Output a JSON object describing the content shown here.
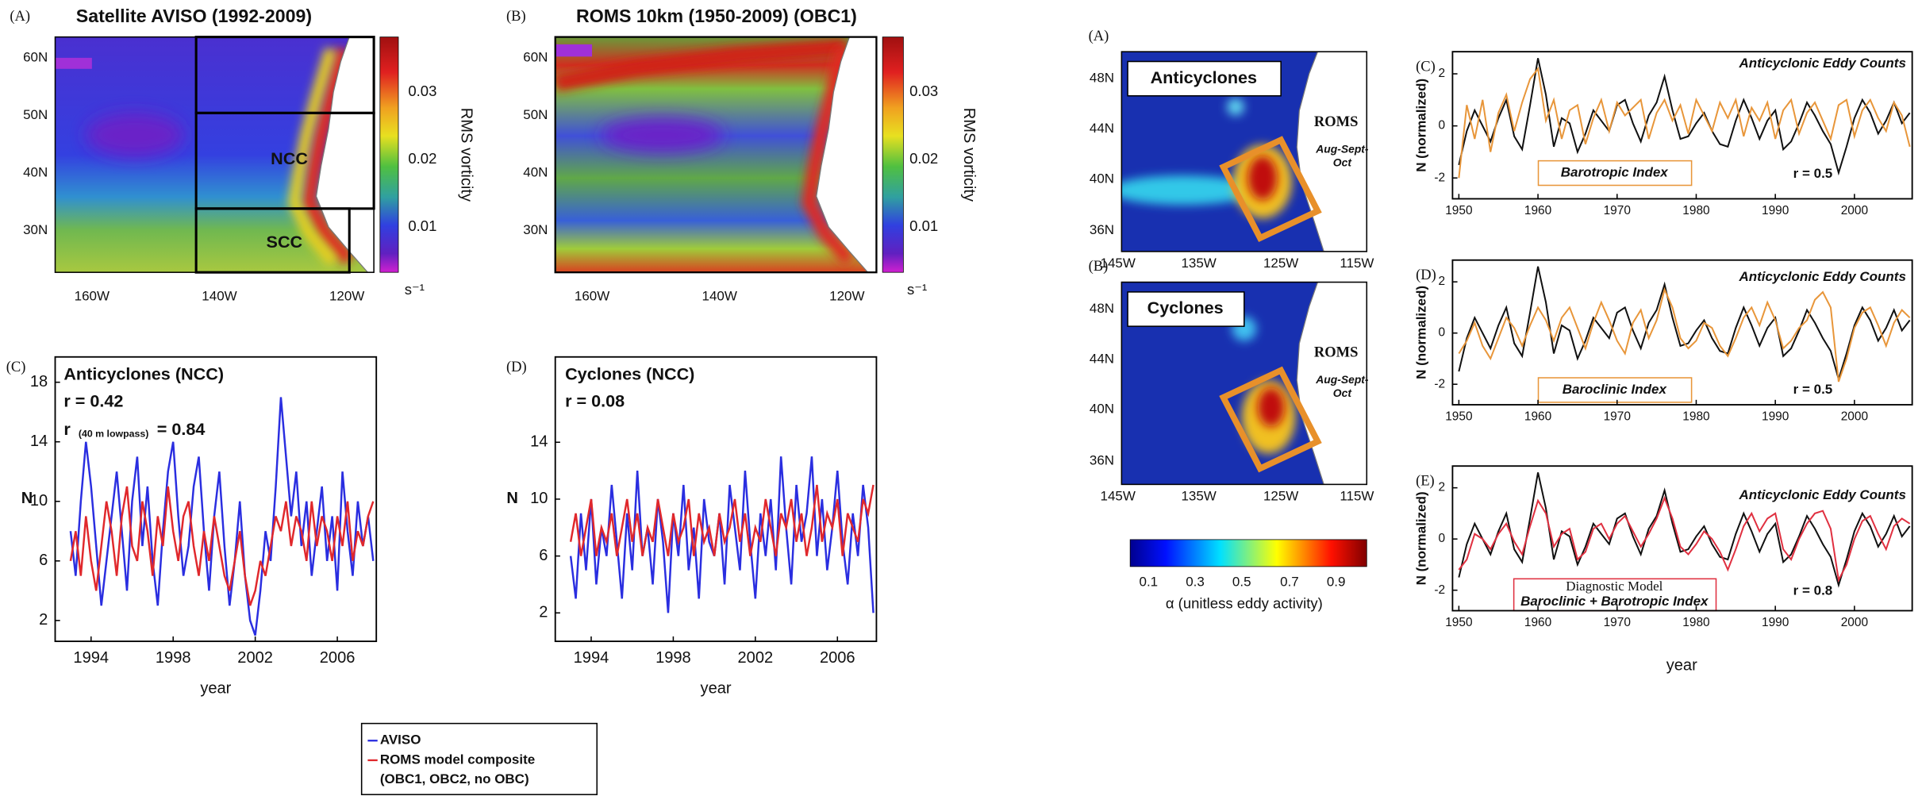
{
  "chart_data": [
    {
      "type": "line",
      "panel": "(C)",
      "title": "Anticyclones (NCC)",
      "annotations": [
        "r = 0.42",
        "r",
        "(40 m lowpass)",
        "= 0.84"
      ],
      "xlabel": "year",
      "ylabel": "N",
      "x": [
        1993,
        1993.25,
        1993.5,
        1993.75,
        1994,
        1994.25,
        1994.5,
        1994.75,
        1995,
        1995.25,
        1995.5,
        1995.75,
        1996,
        1996.25,
        1996.5,
        1996.75,
        1997,
        1997.25,
        1997.5,
        1997.75,
        1998,
        1998.25,
        1998.5,
        1998.75,
        1999,
        1999.25,
        1999.5,
        1999.75,
        2000,
        2000.25,
        2000.5,
        2000.75,
        2001,
        2001.25,
        2001.5,
        2001.75,
        2002,
        2002.25,
        2002.5,
        2002.75,
        2003,
        2003.25,
        2003.5,
        2003.75,
        2004,
        2004.25,
        2004.5,
        2004.75,
        2005,
        2005.25,
        2005.5,
        2005.75,
        2006,
        2006.25,
        2006.5,
        2006.75,
        2007,
        2007.25,
        2007.5,
        2007.75
      ],
      "series": [
        {
          "name": "AVISO",
          "color": "#2a2ee0",
          "values": [
            8,
            5,
            10,
            14,
            11,
            7,
            3,
            6,
            9,
            12,
            8,
            4,
            10,
            13,
            7,
            11,
            6,
            3,
            8,
            12,
            14,
            9,
            5,
            7,
            11,
            13,
            8,
            4,
            9,
            12,
            7,
            3,
            6,
            10,
            5,
            2,
            1,
            4,
            8,
            6,
            11,
            17,
            13,
            9,
            12,
            7,
            10,
            5,
            8,
            11,
            6,
            9,
            4,
            12,
            8,
            5,
            10,
            7,
            9,
            6
          ]
        },
        {
          "name": "ROMS model composite",
          "color": "#e0282c",
          "values": [
            6,
            8,
            5,
            9,
            6,
            4,
            7,
            10,
            8,
            5,
            9,
            11,
            7,
            6,
            10,
            8,
            5,
            9,
            7,
            11,
            8,
            6,
            9,
            10,
            7,
            5,
            8,
            6,
            9,
            7,
            5,
            4,
            6,
            8,
            5,
            3,
            4,
            6,
            5,
            7,
            9,
            8,
            10,
            7,
            9,
            8,
            6,
            10,
            7,
            9,
            8,
            6,
            9,
            7,
            10,
            6,
            8,
            7,
            9,
            10
          ]
        }
      ],
      "legend_note": "(OBC1, OBC2, no OBC)",
      "xlim": [
        1992.25,
        2007.9
      ],
      "ylim": [
        0.6,
        19.7
      ],
      "xticks": [
        1994,
        1998,
        2002,
        2006
      ],
      "yticks": [
        2,
        6,
        10,
        14,
        18
      ]
    },
    {
      "type": "line",
      "panel": "(D)",
      "title": "Cyclones (NCC)",
      "annotations": [
        "r = 0.08"
      ],
      "xlabel": "year",
      "ylabel": "N",
      "x": [
        1993,
        1993.25,
        1993.5,
        1993.75,
        1994,
        1994.25,
        1994.5,
        1994.75,
        1995,
        1995.25,
        1995.5,
        1995.75,
        1996,
        1996.25,
        1996.5,
        1996.75,
        1997,
        1997.25,
        1997.5,
        1997.75,
        1998,
        1998.25,
        1998.5,
        1998.75,
        1999,
        1999.25,
        1999.5,
        1999.75,
        2000,
        2000.25,
        2000.5,
        2000.75,
        2001,
        2001.25,
        2001.5,
        2001.75,
        2002,
        2002.25,
        2002.5,
        2002.75,
        2003,
        2003.25,
        2003.5,
        2003.75,
        2004,
        2004.25,
        2004.5,
        2004.75,
        2005,
        2005.25,
        2005.5,
        2005.75,
        2006,
        2006.25,
        2006.5,
        2006.75,
        2007,
        2007.25,
        2007.5,
        2007.75
      ],
      "series": [
        {
          "color": "#2a2ee0",
          "values": [
            6,
            3,
            9,
            5,
            10,
            4,
            8,
            6,
            11,
            7,
            3,
            9,
            5,
            12,
            6,
            8,
            4,
            10,
            7,
            2,
            9,
            6,
            11,
            5,
            8,
            3,
            10,
            7,
            6,
            9,
            4,
            11,
            8,
            5,
            12,
            7,
            3,
            9,
            6,
            10,
            5,
            13,
            8,
            4,
            11,
            7,
            9,
            13,
            6,
            10,
            5,
            8,
            12,
            7,
            4,
            9,
            6,
            11,
            8,
            2
          ]
        },
        {
          "color": "#e0282c",
          "values": [
            7,
            9,
            6,
            8,
            10,
            6,
            8,
            7,
            9,
            6,
            8,
            10,
            7,
            9,
            6,
            8,
            7,
            10,
            8,
            6,
            9,
            7,
            8,
            10,
            6,
            9,
            7,
            8,
            6,
            9,
            7,
            8,
            10,
            7,
            9,
            6,
            8,
            7,
            10,
            8,
            6,
            9,
            8,
            10,
            7,
            9,
            6,
            8,
            11,
            7,
            9,
            8,
            10,
            6,
            9,
            8,
            7,
            10,
            9,
            11
          ]
        }
      ],
      "xlim": [
        1992.25,
        2007.9
      ],
      "ylim": [
        0,
        20
      ],
      "xticks": [
        1994,
        1998,
        2002,
        2006
      ],
      "yticks": [
        2,
        6,
        10,
        14
      ]
    },
    {
      "type": "line",
      "panel": "(C)",
      "title": "Anticyclonic Eddy Counts",
      "annotations": [
        "Barotropic Index",
        "r = 0.5"
      ],
      "ylabel": "N (normalized)",
      "x": [
        1950,
        1951,
        1952,
        1953,
        1954,
        1955,
        1956,
        1957,
        1958,
        1959,
        1960,
        1961,
        1962,
        1963,
        1964,
        1965,
        1966,
        1967,
        1968,
        1969,
        1970,
        1971,
        1972,
        1973,
        1974,
        1975,
        1976,
        1977,
        1978,
        1979,
        1980,
        1981,
        1982,
        1983,
        1984,
        1985,
        1986,
        1987,
        1988,
        1989,
        1990,
        1991,
        1992,
        1993,
        1994,
        1995,
        1996,
        1997,
        1998,
        1999,
        2000,
        2001,
        2002,
        2003,
        2004,
        2005,
        2006,
        2007
      ],
      "series": [
        {
          "color": "#111111",
          "values": [
            -1.5,
            -0.2,
            0.6,
            0.0,
            -0.6,
            0.3,
            1.0,
            -0.4,
            -0.9,
            0.8,
            2.6,
            1.2,
            -0.8,
            0.3,
            0.1,
            -1.0,
            -0.3,
            0.6,
            0.2,
            -0.2,
            0.8,
            1.0,
            0.1,
            -0.6,
            0.4,
            0.9,
            1.9,
            0.6,
            -0.5,
            -0.4,
            0.1,
            0.5,
            -0.2,
            -0.7,
            -0.8,
            0.2,
            1.0,
            0.3,
            -0.5,
            0.2,
            0.6,
            -0.9,
            -0.6,
            0.1,
            0.9,
            0.4,
            -0.2,
            -0.7,
            -1.8,
            -0.8,
            0.3,
            1.0,
            0.5,
            -0.3,
            0.2,
            0.9,
            0.1,
            0.5
          ]
        },
        {
          "color": "#e8963a",
          "values": [
            -2.0,
            0.8,
            -0.5,
            1.0,
            -1.0,
            0.5,
            1.2,
            -0.2,
            0.9,
            1.8,
            2.2,
            0.2,
            1.0,
            -0.5,
            0.6,
            0.8,
            -0.7,
            0.3,
            1.0,
            -0.2,
            0.9,
            0.4,
            0.7,
            1.0,
            -0.5,
            0.5,
            1.0,
            0.2,
            0.8,
            -0.3,
            1.0,
            0.4,
            -0.2,
            0.9,
            0.3,
            1.0,
            -0.4,
            0.7,
            0.2,
            0.9,
            -0.5,
            0.6,
            1.0,
            -0.3,
            0.5,
            0.9,
            0.2,
            -0.5,
            0.8,
            1.0,
            -0.4,
            0.6,
            1.0,
            0.3,
            -0.2,
            0.9,
            0.4,
            -0.8
          ]
        }
      ],
      "xlim": [
        1949.2,
        2007.3
      ],
      "ylim": [
        -2.8,
        2.85
      ],
      "xticks": [
        1950,
        1960,
        1970,
        1980,
        1990,
        2000
      ],
      "yticks": [
        -2,
        0,
        2
      ]
    },
    {
      "type": "line",
      "panel": "(D)",
      "title": "Anticyclonic Eddy Counts",
      "annotations": [
        "Baroclinic Index",
        "r = 0.5"
      ],
      "ylabel": "N (normalized)",
      "x": [
        1950,
        1951,
        1952,
        1953,
        1954,
        1955,
        1956,
        1957,
        1958,
        1959,
        1960,
        1961,
        1962,
        1963,
        1964,
        1965,
        1966,
        1967,
        1968,
        1969,
        1970,
        1971,
        1972,
        1973,
        1974,
        1975,
        1976,
        1977,
        1978,
        1979,
        1980,
        1981,
        1982,
        1983,
        1984,
        1985,
        1986,
        1987,
        1988,
        1989,
        1990,
        1991,
        1992,
        1993,
        1994,
        1995,
        1996,
        1997,
        1998,
        1999,
        2000,
        2001,
        2002,
        2003,
        2004,
        2005,
        2006,
        2007
      ],
      "series": [
        {
          "color": "#111111",
          "values": [
            -1.5,
            -0.2,
            0.6,
            0.0,
            -0.6,
            0.3,
            1.0,
            -0.4,
            -0.9,
            0.8,
            2.6,
            1.2,
            -0.8,
            0.3,
            0.1,
            -1.0,
            -0.3,
            0.6,
            0.2,
            -0.2,
            0.8,
            1.0,
            0.1,
            -0.6,
            0.4,
            0.9,
            1.9,
            0.6,
            -0.5,
            -0.4,
            0.1,
            0.5,
            -0.2,
            -0.7,
            -0.8,
            0.2,
            1.0,
            0.3,
            -0.5,
            0.2,
            0.6,
            -0.9,
            -0.6,
            0.1,
            0.9,
            0.4,
            -0.2,
            -0.7,
            -1.8,
            -0.8,
            0.3,
            1.0,
            0.5,
            -0.3,
            0.2,
            0.9,
            0.1,
            0.5
          ]
        },
        {
          "color": "#e8963a",
          "values": [
            -0.8,
            -0.3,
            0.4,
            -0.5,
            -1.0,
            -0.2,
            0.6,
            0.2,
            -0.5,
            0.3,
            1.0,
            0.5,
            -0.3,
            0.6,
            1.0,
            0.2,
            -0.6,
            0.4,
            1.2,
            0.5,
            -0.3,
            -0.8,
            0.4,
            0.9,
            -0.2,
            0.5,
            1.7,
            1.0,
            -0.2,
            -0.6,
            -0.3,
            0.4,
            0.2,
            -0.5,
            -0.9,
            -0.2,
            0.6,
            1.0,
            0.3,
            1.2,
            0.5,
            -0.6,
            -0.3,
            0.2,
            0.5,
            1.3,
            1.6,
            1.0,
            -1.9,
            -1.0,
            0.2,
            0.8,
            1.0,
            0.3,
            -0.5,
            0.4,
            0.9,
            0.6
          ]
        }
      ],
      "xlim": [
        1949.2,
        2007.3
      ],
      "ylim": [
        -2.8,
        2.85
      ],
      "xticks": [
        1950,
        1960,
        1970,
        1980,
        1990,
        2000
      ],
      "yticks": [
        -2,
        0,
        2
      ]
    },
    {
      "type": "line",
      "panel": "(E)",
      "title": "Anticyclonic Eddy Counts",
      "annotations": [
        "Diagnostic Model",
        "Baroclinic + Barotropic Index",
        "r = 0.8"
      ],
      "xlabel": "year",
      "ylabel": "N (normalized)",
      "x": [
        1950,
        1951,
        1952,
        1953,
        1954,
        1955,
        1956,
        1957,
        1958,
        1959,
        1960,
        1961,
        1962,
        1963,
        1964,
        1965,
        1966,
        1967,
        1968,
        1969,
        1970,
        1971,
        1972,
        1973,
        1974,
        1975,
        1976,
        1977,
        1978,
        1979,
        1980,
        1981,
        1982,
        1983,
        1984,
        1985,
        1986,
        1987,
        1988,
        1989,
        1990,
        1991,
        1992,
        1993,
        1994,
        1995,
        1996,
        1997,
        1998,
        1999,
        2000,
        2001,
        2002,
        2003,
        2004,
        2005,
        2006,
        2007
      ],
      "series": [
        {
          "color": "#111111",
          "values": [
            -1.5,
            -0.2,
            0.6,
            0.0,
            -0.6,
            0.3,
            1.0,
            -0.4,
            -0.9,
            0.8,
            2.6,
            1.2,
            -0.8,
            0.3,
            0.1,
            -1.0,
            -0.3,
            0.6,
            0.2,
            -0.2,
            0.8,
            1.0,
            0.1,
            -0.6,
            0.4,
            0.9,
            1.9,
            0.6,
            -0.5,
            -0.4,
            0.1,
            0.5,
            -0.2,
            -0.7,
            -0.8,
            0.2,
            1.0,
            0.3,
            -0.5,
            0.2,
            0.6,
            -0.9,
            -0.6,
            0.1,
            0.9,
            0.4,
            -0.2,
            -0.7,
            -1.8,
            -0.8,
            0.3,
            1.0,
            0.5,
            -0.3,
            0.2,
            0.9,
            0.1,
            0.5
          ]
        },
        {
          "color": "#e03040",
          "values": [
            -1.2,
            -0.8,
            0.2,
            0.0,
            -0.4,
            0.2,
            0.6,
            -0.1,
            -0.6,
            0.5,
            1.5,
            1.0,
            -0.3,
            0.2,
            0.4,
            -0.8,
            -0.5,
            0.4,
            0.6,
            0.0,
            0.6,
            0.9,
            0.3,
            -0.3,
            0.2,
            0.8,
            1.6,
            0.8,
            -0.3,
            -0.6,
            -0.2,
            0.3,
            0.0,
            -0.5,
            -1.2,
            -0.4,
            0.5,
            1.0,
            0.3,
            0.8,
            1.0,
            -0.4,
            -0.8,
            0.0,
            0.6,
            1.0,
            1.1,
            0.4,
            -1.6,
            -1.0,
            0.0,
            0.7,
            0.9,
            0.2,
            -0.4,
            0.5,
            0.8,
            0.6
          ]
        }
      ],
      "xlim": [
        1949.2,
        2007.3
      ],
      "ylim": [
        -2.8,
        2.85
      ],
      "xticks": [
        1950,
        1960,
        1970,
        1980,
        1990,
        2000
      ],
      "yticks": [
        -2,
        0,
        2
      ]
    }
  ],
  "maps": [
    {
      "label": "(A)",
      "title": "Satellite AVISO (1992-2009)",
      "lat": [
        "60N",
        "50N",
        "40N",
        "30N"
      ],
      "lon": [
        "160W",
        "140W",
        "120W"
      ],
      "regions": [
        "NCC",
        "SCC"
      ],
      "colorbar": {
        "ticks": [
          "0.03",
          "0.02",
          "0.01"
        ],
        "unit": "s⁻¹",
        "label": "RMS vorticity"
      }
    },
    {
      "label": "(B)",
      "title": "ROMS 10km (1950-2009) (OBC1)",
      "lat": [
        "60N",
        "50N",
        "40N",
        "30N"
      ],
      "lon": [
        "160W",
        "140W",
        "120W"
      ],
      "colorbar": {
        "ticks": [
          "0.03",
          "0.02",
          "0.01"
        ],
        "unit": "s⁻¹",
        "label": "RMS vorticity"
      }
    },
    {
      "label": "(A)",
      "title": "Anticyclones",
      "source": "ROMS",
      "season": [
        "Aug-Sept-",
        "Oct"
      ],
      "lat": [
        "48N",
        "44N",
        "40N",
        "36N"
      ],
      "lon": [
        "145W",
        "135W",
        "125W",
        "115W"
      ]
    },
    {
      "label": "(B)",
      "title": "Cyclones",
      "source": "ROMS",
      "season": [
        "Aug-Sept-",
        "Oct"
      ],
      "lat": [
        "48N",
        "44N",
        "40N",
        "36N"
      ],
      "lon": [
        "145W",
        "135W",
        "125W",
        "115W"
      ]
    }
  ],
  "colorbar": {
    "ticks": [
      "0.1",
      "0.3",
      "0.5",
      "0.7",
      "0.9"
    ],
    "label": "α (unitless eddy activity)"
  }
}
